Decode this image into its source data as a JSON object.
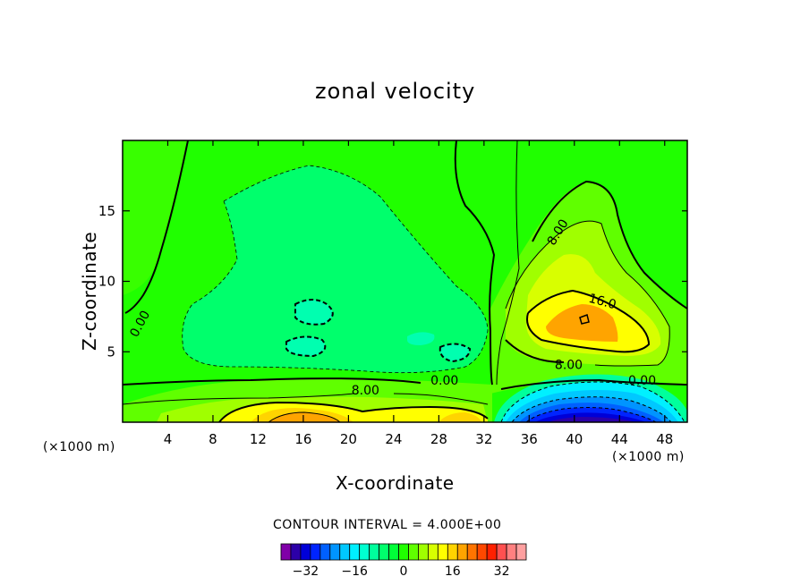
{
  "chart_data": {
    "type": "heatmap",
    "subtype": "filled contour",
    "title": "zonal velocity",
    "xlabel": "X-coordinate",
    "ylabel": "Z-coordinate",
    "x_unit": "(×1000 m)",
    "x_unit_right": "(×1000 m)",
    "xlim": [
      0,
      50
    ],
    "ylim": [
      0,
      20
    ],
    "x_ticks": [
      4,
      8,
      12,
      16,
      20,
      24,
      28,
      32,
      36,
      40,
      44,
      48
    ],
    "y_ticks": [
      5,
      10,
      15
    ],
    "contour_interval_text": "CONTOUR INTERVAL = 4.000E+00",
    "contour_labels": [
      {
        "text": "0.00",
        "x": 1.5,
        "y": 7.0,
        "angle": -62
      },
      {
        "text": "8.00",
        "x": 21.5,
        "y": 2.3,
        "angle": 0
      },
      {
        "text": "0.00",
        "x": 28.5,
        "y": 3.0,
        "angle": 0
      },
      {
        "text": "8.00",
        "x": 38.5,
        "y": 13.5,
        "angle": -58
      },
      {
        "text": "16.0",
        "x": 42.5,
        "y": 8.6,
        "angle": 15
      },
      {
        "text": "8.00",
        "x": 39.5,
        "y": 4.1,
        "angle": 0
      },
      {
        "text": "0.00",
        "x": 46.0,
        "y": 3.0,
        "angle": 0
      }
    ],
    "colorbar": {
      "min": -40,
      "max": 40,
      "step": 4,
      "tick_values": [
        -32,
        -16,
        0,
        16,
        32
      ],
      "tick_labels": [
        "−32",
        "−16",
        "0",
        "16",
        "32"
      ],
      "colors": [
        "#8000a8",
        "#2c00a8",
        "#0000d8",
        "#0024ff",
        "#0060ff",
        "#0094ff",
        "#00c8ff",
        "#00f0ff",
        "#00ffd0",
        "#00ff9c",
        "#00ff6c",
        "#00ff38",
        "#20ff00",
        "#60ff00",
        "#a0ff00",
        "#d8ff00",
        "#ffff00",
        "#ffd400",
        "#ffa400",
        "#ff7400",
        "#ff4800",
        "#ff2000",
        "#ff5050",
        "#ff8080",
        "#ffa0a0"
      ]
    },
    "regions": [
      {
        "name": "background",
        "value": 2,
        "color": "#20ff00"
      },
      {
        "name": "upper negative lobe",
        "value": -2,
        "color": "#00ff38",
        "center_x": 18,
        "center_z": 10
      },
      {
        "name": "central negative core",
        "value": -6,
        "color": "#00ff9c"
      },
      {
        "name": "right positive lobe",
        "value": 18,
        "color": "#ffa400",
        "center_x": 41,
        "center_z": 7
      },
      {
        "name": "bottom jet",
        "value": 14,
        "color": "#ffd400",
        "center_x": 17,
        "center_z": 0.5
      },
      {
        "name": "bottom negative jet",
        "value": -38,
        "color": "#2c00a8",
        "center_x": 42,
        "center_z": 0.3
      }
    ]
  }
}
